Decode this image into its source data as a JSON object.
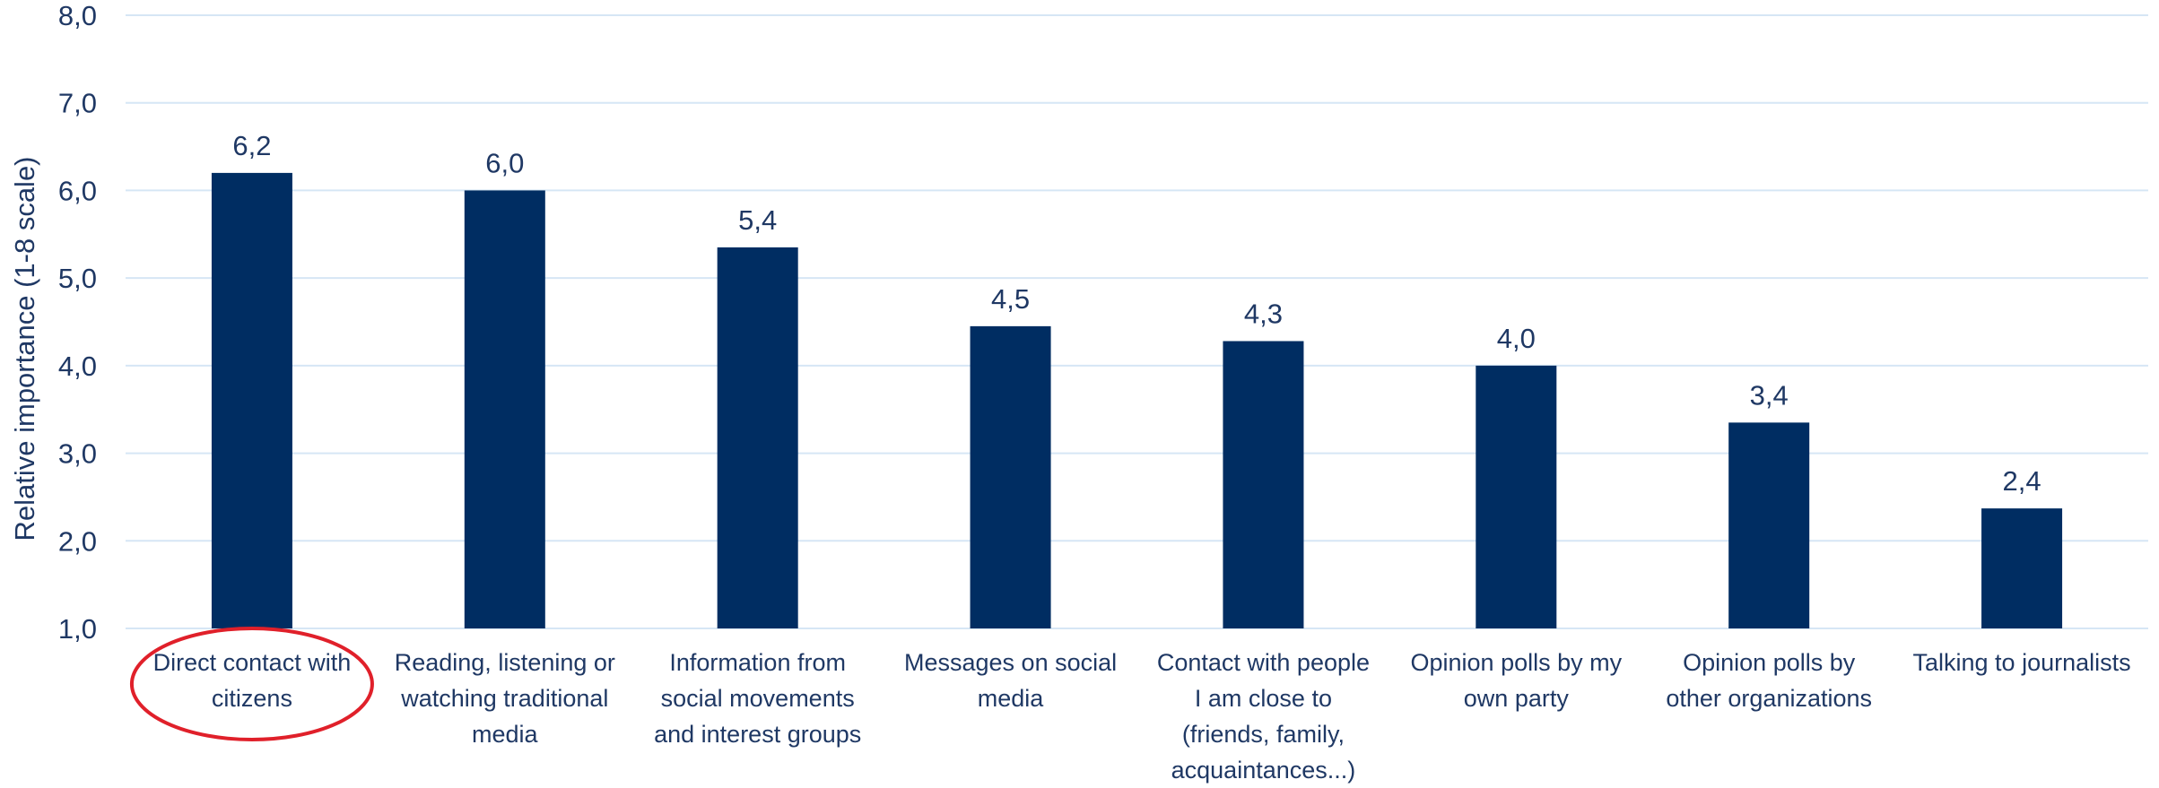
{
  "chart_data": {
    "type": "bar",
    "categories": [
      [
        "Direct contact with",
        "citizens"
      ],
      [
        "Reading, listening or",
        "watching traditional",
        "media"
      ],
      [
        "Information from",
        "social movements",
        "and interest groups"
      ],
      [
        "Messages on social",
        "media"
      ],
      [
        "Contact with people",
        "I am close to",
        "(friends, family,",
        "acquaintances...)"
      ],
      [
        "Opinion polls by my",
        "own party"
      ],
      [
        "Opinion polls by",
        "other organizations"
      ],
      [
        "Talking to journalists"
      ]
    ],
    "values": [
      6.2,
      6.0,
      5.35,
      4.45,
      4.28,
      4.0,
      3.35,
      2.37
    ],
    "data_labels": [
      "6,2",
      "6,0",
      "5,4",
      "4,5",
      "4,3",
      "4,0",
      "3,4",
      "2,4"
    ],
    "ylabel": "Relative importance (1-8 scale)",
    "ylim": [
      1,
      8
    ],
    "y_ticks": [
      1,
      2,
      3,
      4,
      5,
      6,
      7,
      8
    ],
    "y_tick_labels": [
      "1,0",
      "2,0",
      "3,0",
      "4,0",
      "5,0",
      "6,0",
      "7,0",
      "8,0"
    ],
    "grid": true,
    "highlight_category_index": 0,
    "colors": {
      "bar": "#002d62",
      "text": "#1f3864",
      "grid": "#d6e6f5",
      "highlight": "#e0202a"
    }
  }
}
